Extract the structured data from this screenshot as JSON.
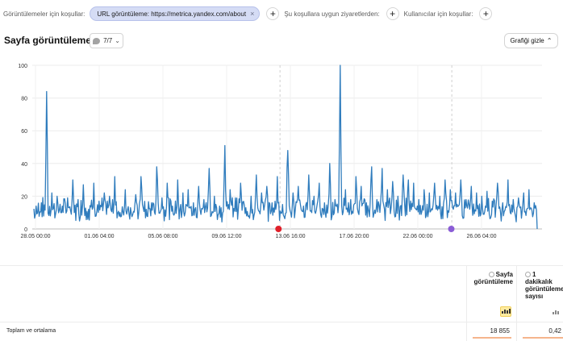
{
  "filters": {
    "views_label": "Görüntülemeler için koşullar:",
    "chip_text": "URL görüntüleme: https://metrica.yandex.com/about",
    "chip_remove": "×",
    "visits_label": "Şu koşullara uygun ziyaretlerden:",
    "users_label": "Kullanıcılar için koşullar:",
    "add_symbol": "+"
  },
  "header": {
    "title": "Sayfa görüntüleme",
    "segments_label": "7/7",
    "hide_chart_label": "Grafiği gizle"
  },
  "table": {
    "col1_header": "Sayfa görüntüleme",
    "col2_header": "1 dakikalık görüntüleme sayısı",
    "total_label": "Toplam ve ortalama",
    "total_col1": "18 855",
    "total_col2": "0,42"
  },
  "colors": {
    "series": "#2f7cbd",
    "chip_bg": "#d5dcf5",
    "marker_red": "#e0202a",
    "marker_purple": "#8a5cd6"
  },
  "chart_data": {
    "type": "line",
    "ylim": [
      0,
      100
    ],
    "yticks": [
      0,
      20,
      40,
      60,
      80,
      100
    ],
    "xtick_labels": [
      "28.05 00:00",
      "01.06 04:00",
      "05.06 08:00",
      "09.06 12:00",
      "13.06 16:00",
      "17.06 20:00",
      "22.06 00:00",
      "26.06 04:00"
    ],
    "grid": true,
    "annotation_markers": [
      {
        "label": "",
        "color": "#e0202a",
        "at_fraction": 0.483
      },
      {
        "label": "",
        "color": "#8a5cd6",
        "at_fraction": 0.822
      }
    ],
    "series": [
      {
        "peaks_hourly": [
          14,
          16,
          84,
          22,
          20,
          14,
          19,
          30,
          18,
          27,
          12,
          28,
          17,
          22,
          20,
          32,
          10,
          24,
          13,
          21,
          32,
          12,
          16,
          38,
          19,
          28,
          14,
          30,
          22,
          24,
          16,
          26,
          18,
          37,
          20,
          14,
          51,
          24,
          19,
          28,
          13,
          20,
          33,
          22,
          26,
          16,
          32,
          15,
          48,
          22,
          26,
          14,
          33,
          20,
          28,
          16,
          40,
          18,
          100,
          24,
          18,
          32,
          26,
          16,
          38,
          18,
          37,
          24,
          29,
          20,
          33,
          30,
          28,
          18,
          24,
          22,
          28,
          20,
          30,
          24,
          22,
          30,
          18,
          26,
          22,
          20,
          23,
          17,
          28,
          16,
          30,
          18,
          19,
          22,
          24,
          16
        ]
      }
    ]
  }
}
